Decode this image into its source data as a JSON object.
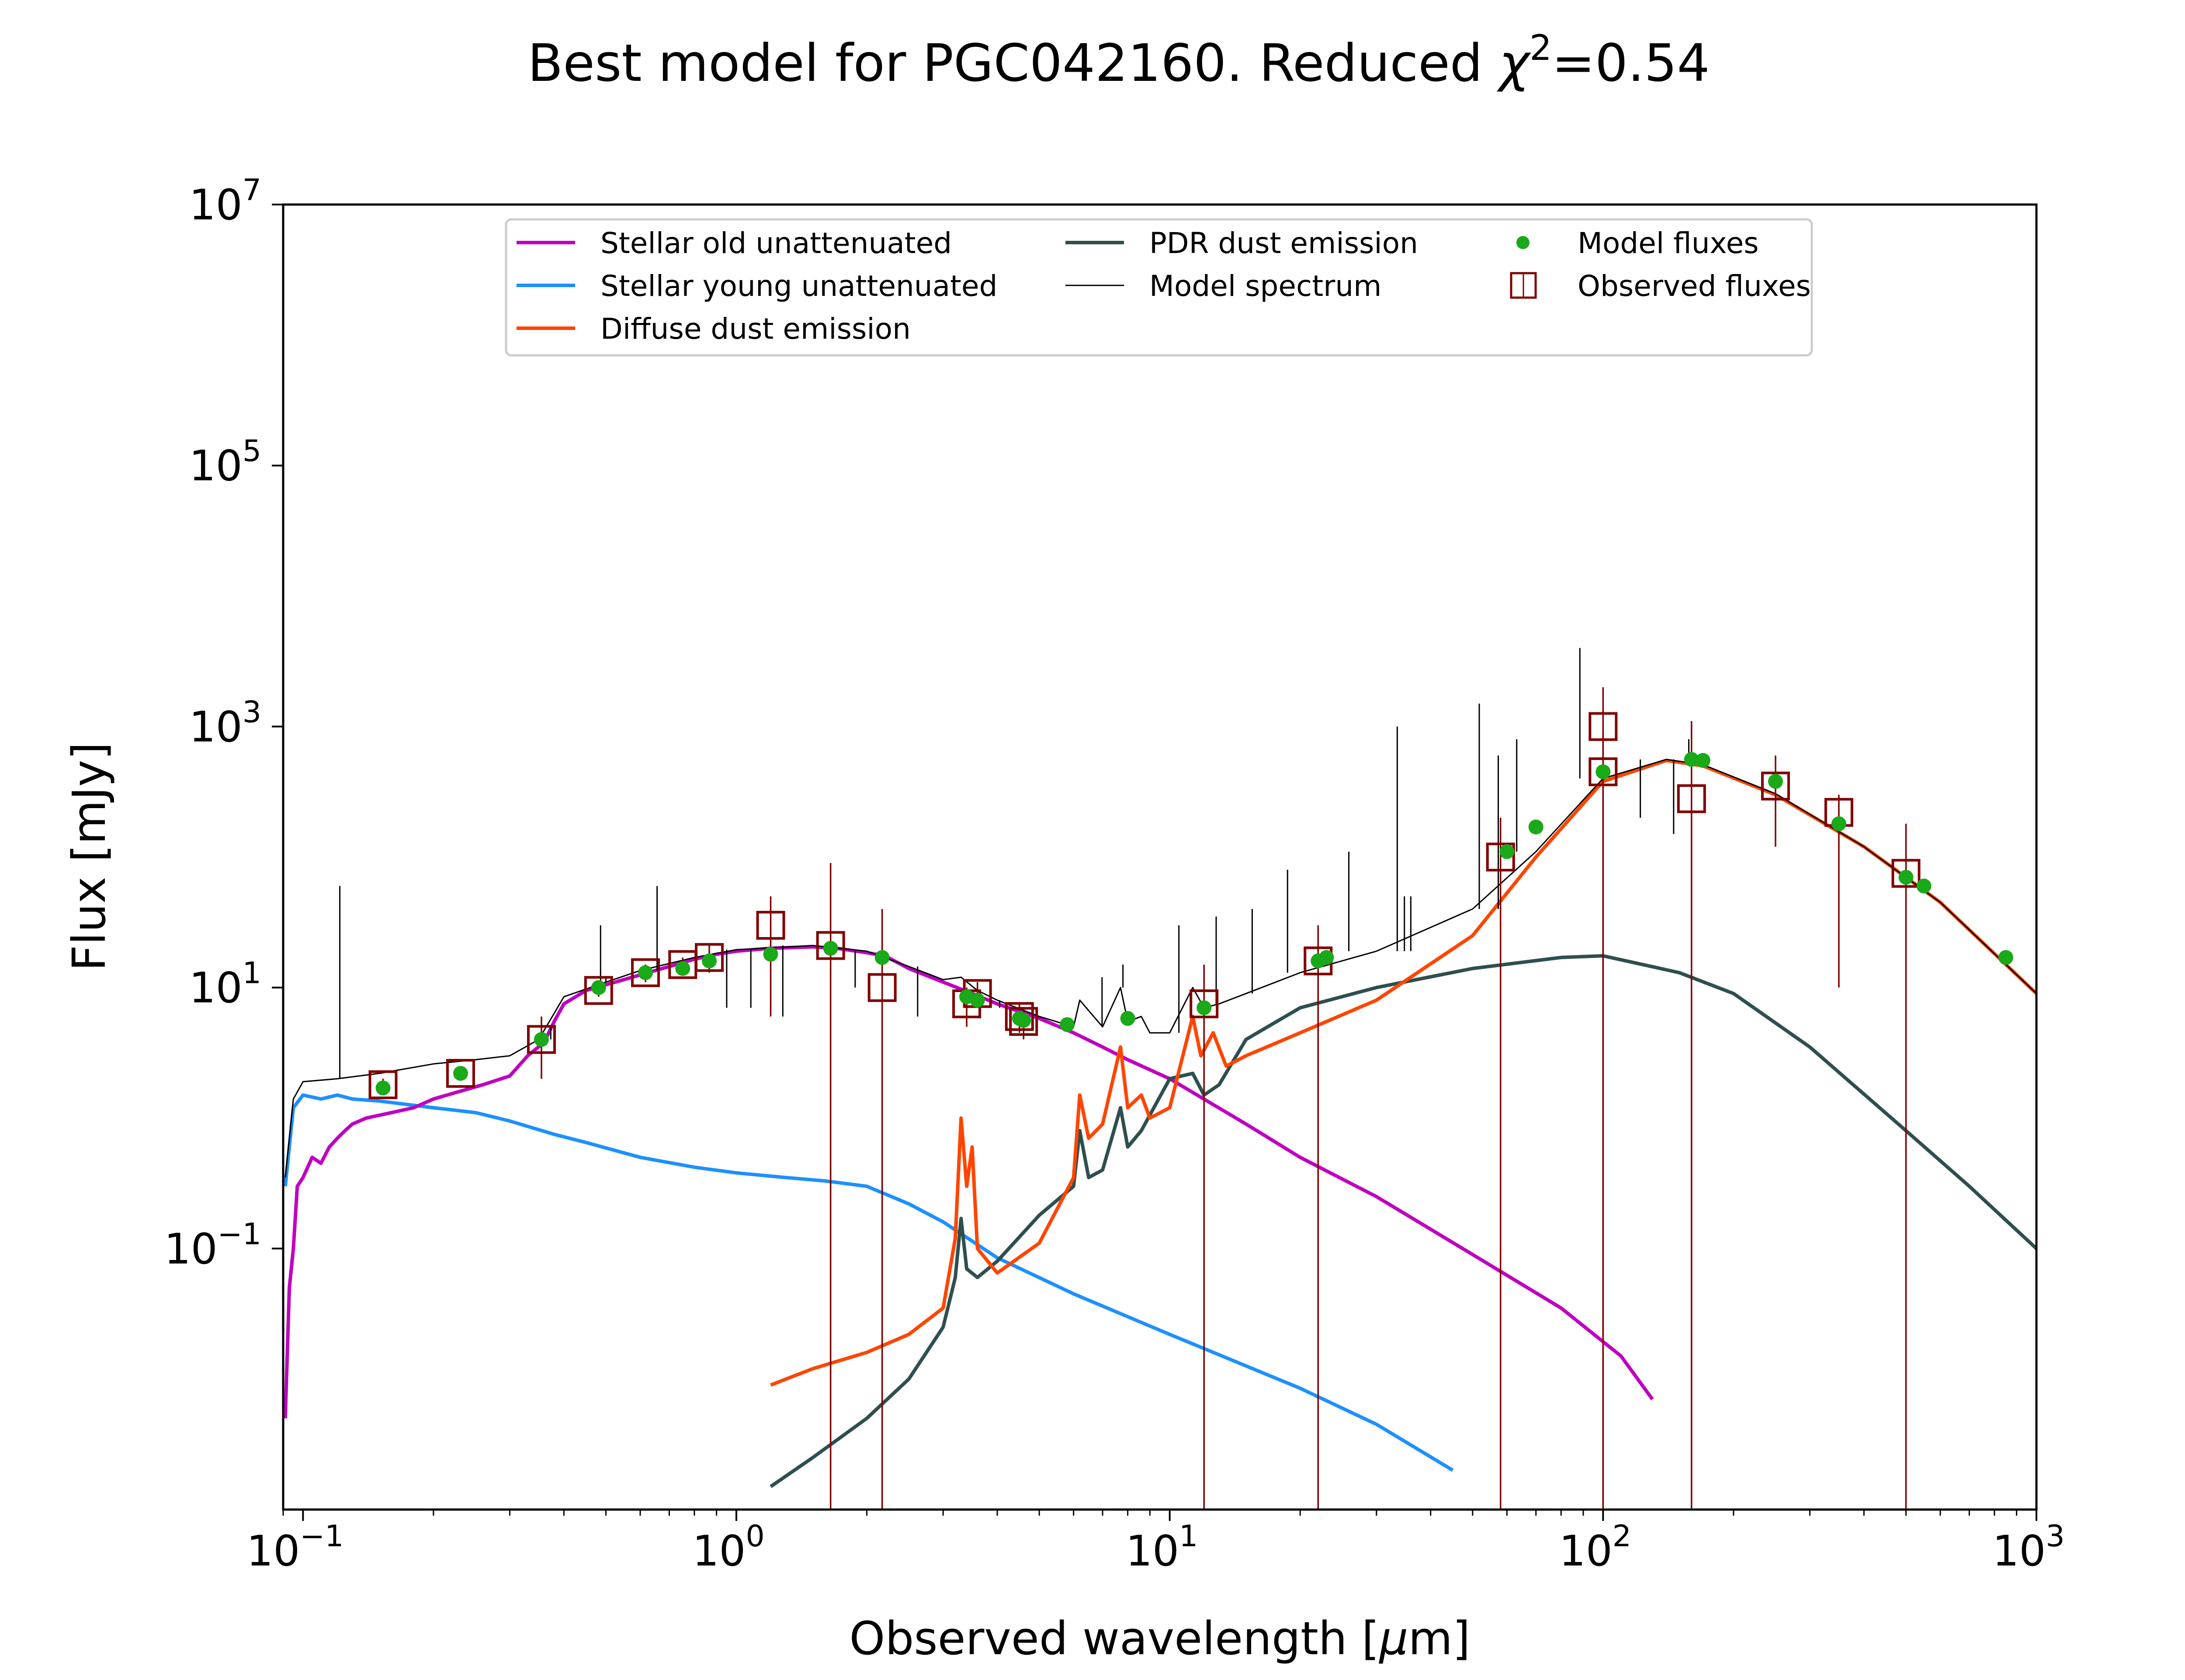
{
  "chart_data": {
    "type": "line",
    "title": "Best model for PGC042160. Reduced χ²=0.54",
    "title_parts": {
      "main": "Best model for PGC042160. Reduced ",
      "chi": "χ",
      "sup": "2",
      "tail": "=0.54"
    },
    "xlabel": "Observed wavelength [μm]",
    "xlabel_parts": {
      "main": "Observed wavelength [",
      "mu": "μ",
      "tail": "m]"
    },
    "ylabel": "Flux [mJy]",
    "xscale": "log",
    "yscale": "log",
    "xlim": [
      0.09,
      1000
    ],
    "ylim": [
      0.001,
      10000000
    ],
    "xticks": [
      {
        "value": 0.1,
        "base": "10",
        "exp": "−1"
      },
      {
        "value": 1,
        "base": "10",
        "exp": "0"
      },
      {
        "value": 10,
        "base": "10",
        "exp": "1"
      },
      {
        "value": 100,
        "base": "10",
        "exp": "2"
      },
      {
        "value": 1000,
        "base": "10",
        "exp": "3"
      }
    ],
    "yticks": [
      {
        "value": 0.1,
        "base": "10",
        "exp": "−1"
      },
      {
        "value": 10,
        "base": "10",
        "exp": "1"
      },
      {
        "value": 1000,
        "base": "10",
        "exp": "3"
      },
      {
        "value": 100000,
        "base": "10",
        "exp": "5"
      },
      {
        "value": 10000000,
        "base": "10",
        "exp": "7"
      }
    ],
    "grid": false,
    "legend_position": "top-center",
    "legend_entries": [
      {
        "label": "Stellar old unattenuated",
        "color": "#bf00bf",
        "kind": "line"
      },
      {
        "label": "Stellar young unattenuated",
        "color": "#1e90ff",
        "kind": "line"
      },
      {
        "label": "Diffuse dust emission",
        "color": "#ff4500",
        "kind": "line"
      },
      {
        "label": "PDR dust emission",
        "color": "#2f4f4f",
        "kind": "line"
      },
      {
        "label": "Model spectrum",
        "color": "#000000",
        "kind": "thin-line"
      },
      {
        "label": "Model fluxes",
        "color": "#19a919",
        "kind": "dot"
      },
      {
        "label": "Observed fluxes",
        "color": "#800000",
        "kind": "square"
      }
    ],
    "series": [
      {
        "name": "Stellar old unattenuated",
        "color": "#bf00bf",
        "points": [
          [
            0.091,
            0.005
          ],
          [
            0.093,
            0.05
          ],
          [
            0.095,
            0.1
          ],
          [
            0.097,
            0.3
          ],
          [
            0.1,
            0.35
          ],
          [
            0.105,
            0.5
          ],
          [
            0.11,
            0.45
          ],
          [
            0.115,
            0.6
          ],
          [
            0.12,
            0.7
          ],
          [
            0.125,
            0.8
          ],
          [
            0.13,
            0.9
          ],
          [
            0.14,
            1.0
          ],
          [
            0.16,
            1.1
          ],
          [
            0.18,
            1.2
          ],
          [
            0.2,
            1.4
          ],
          [
            0.23,
            1.6
          ],
          [
            0.26,
            1.8
          ],
          [
            0.3,
            2.1
          ],
          [
            0.33,
            3.0
          ],
          [
            0.36,
            3.8
          ],
          [
            0.38,
            5.5
          ],
          [
            0.4,
            7.5
          ],
          [
            0.45,
            9.5
          ],
          [
            0.5,
            10.5
          ],
          [
            0.6,
            12.5
          ],
          [
            0.7,
            14.5
          ],
          [
            0.8,
            16.5
          ],
          [
            0.9,
            18.0
          ],
          [
            1.0,
            19.0
          ],
          [
            1.2,
            20.0
          ],
          [
            1.5,
            20.5
          ],
          [
            1.7,
            20.0
          ],
          [
            2.0,
            18.5
          ],
          [
            2.2,
            17.5
          ],
          [
            2.5,
            14.0
          ],
          [
            3.0,
            11.0
          ],
          [
            3.5,
            9.0
          ],
          [
            4.0,
            7.5
          ],
          [
            5.0,
            5.8
          ],
          [
            6.0,
            4.5
          ],
          [
            7.0,
            3.5
          ],
          [
            8.0,
            2.8
          ],
          [
            10.0,
            2.0
          ],
          [
            15.0,
            0.9
          ],
          [
            20.0,
            0.5
          ],
          [
            30.0,
            0.25
          ],
          [
            50.0,
            0.09
          ],
          [
            80.0,
            0.035
          ],
          [
            110.0,
            0.015
          ],
          [
            130.0,
            0.007
          ]
        ]
      },
      {
        "name": "Stellar young unattenuated",
        "color": "#1e90ff",
        "points": [
          [
            0.091,
            0.3
          ],
          [
            0.095,
            1.2
          ],
          [
            0.1,
            1.5
          ],
          [
            0.11,
            1.4
          ],
          [
            0.12,
            1.5
          ],
          [
            0.13,
            1.4
          ],
          [
            0.15,
            1.35
          ],
          [
            0.2,
            1.2
          ],
          [
            0.25,
            1.1
          ],
          [
            0.3,
            0.95
          ],
          [
            0.38,
            0.75
          ],
          [
            0.45,
            0.65
          ],
          [
            0.6,
            0.5
          ],
          [
            0.8,
            0.42
          ],
          [
            1.0,
            0.38
          ],
          [
            1.3,
            0.35
          ],
          [
            1.6,
            0.33
          ],
          [
            2.0,
            0.3
          ],
          [
            2.5,
            0.22
          ],
          [
            3.0,
            0.16
          ],
          [
            4.0,
            0.085
          ],
          [
            6.0,
            0.045
          ],
          [
            10.0,
            0.022
          ],
          [
            20.0,
            0.0085
          ],
          [
            30.0,
            0.0045
          ],
          [
            45.0,
            0.002
          ]
        ]
      },
      {
        "name": "Diffuse dust emission",
        "color": "#ff4500",
        "points": [
          [
            1.2,
            0.009
          ],
          [
            1.5,
            0.012
          ],
          [
            2.0,
            0.016
          ],
          [
            2.5,
            0.022
          ],
          [
            3.0,
            0.035
          ],
          [
            3.2,
            0.12
          ],
          [
            3.3,
            1.0
          ],
          [
            3.4,
            0.3
          ],
          [
            3.5,
            0.6
          ],
          [
            3.6,
            0.1
          ],
          [
            4.0,
            0.065
          ],
          [
            5.0,
            0.11
          ],
          [
            6.0,
            0.35
          ],
          [
            6.2,
            1.5
          ],
          [
            6.5,
            0.7
          ],
          [
            7.0,
            0.9
          ],
          [
            7.7,
            3.5
          ],
          [
            8.0,
            1.2
          ],
          [
            8.6,
            1.5
          ],
          [
            9.0,
            1.0
          ],
          [
            10.0,
            1.2
          ],
          [
            11.3,
            6.0
          ],
          [
            11.8,
            3.0
          ],
          [
            12.6,
            4.5
          ],
          [
            13.5,
            2.5
          ],
          [
            15.0,
            3.0
          ],
          [
            20.0,
            4.5
          ],
          [
            30.0,
            8.0
          ],
          [
            50.0,
            25.0
          ],
          [
            70.0,
            100.0
          ],
          [
            100.0,
            380.0
          ],
          [
            140.0,
            550.0
          ],
          [
            170.0,
            500.0
          ],
          [
            250.0,
            300.0
          ],
          [
            400.0,
            120.0
          ],
          [
            600.0,
            45.0
          ],
          [
            1000.0,
            9.0
          ]
        ]
      },
      {
        "name": "PDR dust emission",
        "color": "#2f4f4f",
        "points": [
          [
            1.2,
            0.0015
          ],
          [
            1.5,
            0.0025
          ],
          [
            2.0,
            0.005
          ],
          [
            2.5,
            0.01
          ],
          [
            3.0,
            0.025
          ],
          [
            3.2,
            0.06
          ],
          [
            3.3,
            0.17
          ],
          [
            3.4,
            0.07
          ],
          [
            3.6,
            0.06
          ],
          [
            4.0,
            0.08
          ],
          [
            5.0,
            0.18
          ],
          [
            6.0,
            0.3
          ],
          [
            6.2,
            0.8
          ],
          [
            6.5,
            0.35
          ],
          [
            7.0,
            0.4
          ],
          [
            7.7,
            1.2
          ],
          [
            8.0,
            0.6
          ],
          [
            8.6,
            0.8
          ],
          [
            10.0,
            2.0
          ],
          [
            11.3,
            2.2
          ],
          [
            12.0,
            1.5
          ],
          [
            13.0,
            1.8
          ],
          [
            15.0,
            4.0
          ],
          [
            20.0,
            7.0
          ],
          [
            30.0,
            10.0
          ],
          [
            50.0,
            14.0
          ],
          [
            80.0,
            17.0
          ],
          [
            100.0,
            17.5
          ],
          [
            150.0,
            13.0
          ],
          [
            200.0,
            9.0
          ],
          [
            300.0,
            3.5
          ],
          [
            500.0,
            0.8
          ],
          [
            700.0,
            0.3
          ],
          [
            1000.0,
            0.1
          ]
        ]
      },
      {
        "name": "Model spectrum",
        "color": "#000000",
        "thin": true,
        "points": [
          [
            0.091,
            0.35
          ],
          [
            0.095,
            1.4
          ],
          [
            0.1,
            1.9
          ],
          [
            0.12,
            2.0
          ],
          [
            0.15,
            2.2
          ],
          [
            0.2,
            2.6
          ],
          [
            0.25,
            2.8
          ],
          [
            0.3,
            3.0
          ],
          [
            0.35,
            4.0
          ],
          [
            0.4,
            8.5
          ],
          [
            0.5,
            11.0
          ],
          [
            0.6,
            13.5
          ],
          [
            0.8,
            17.0
          ],
          [
            1.0,
            19.5
          ],
          [
            1.5,
            21.0
          ],
          [
            2.0,
            19.0
          ],
          [
            2.5,
            14.5
          ],
          [
            3.0,
            11.5
          ],
          [
            3.3,
            12.0
          ],
          [
            3.6,
            9.5
          ],
          [
            4.0,
            8.0
          ],
          [
            5.0,
            6.0
          ],
          [
            6.0,
            5.0
          ],
          [
            6.2,
            8.0
          ],
          [
            7.0,
            5.0
          ],
          [
            7.7,
            10.0
          ],
          [
            8.0,
            5.5
          ],
          [
            8.6,
            6.0
          ],
          [
            9.0,
            4.5
          ],
          [
            10.0,
            4.5
          ],
          [
            11.3,
            10.0
          ],
          [
            12.0,
            7.0
          ],
          [
            13.0,
            7.5
          ],
          [
            15.0,
            9.0
          ],
          [
            20.0,
            13.0
          ],
          [
            30.0,
            19.0
          ],
          [
            50.0,
            40.0
          ],
          [
            70.0,
            110.0
          ],
          [
            100.0,
            400.0
          ],
          [
            140.0,
            560.0
          ],
          [
            170.0,
            510.0
          ],
          [
            250.0,
            305.0
          ],
          [
            400.0,
            120.0
          ],
          [
            600.0,
            45.0
          ],
          [
            1000.0,
            9.0
          ]
        ],
        "emission_lines": [
          [
            0.1216,
            60
          ],
          [
            0.373,
            5
          ],
          [
            0.486,
            30
          ],
          [
            0.5,
            12
          ],
          [
            0.6563,
            60
          ],
          [
            0.95,
            7
          ],
          [
            1.08,
            7
          ],
          [
            1.28,
            6
          ],
          [
            1.88,
            10
          ],
          [
            2.62,
            6
          ],
          [
            4.05,
            7
          ],
          [
            6.98,
            12
          ],
          [
            7.8,
            15
          ],
          [
            10.5,
            30
          ],
          [
            12.8,
            35
          ],
          [
            15.5,
            40
          ],
          [
            18.7,
            80
          ],
          [
            25.9,
            110
          ],
          [
            33.5,
            1000
          ],
          [
            34.8,
            50
          ],
          [
            36.0,
            50
          ],
          [
            51.8,
            1500
          ],
          [
            57.3,
            600
          ],
          [
            63.2,
            800
          ],
          [
            88.4,
            4000
          ],
          [
            121.9,
            200
          ],
          [
            145.5,
            150
          ],
          [
            157.7,
            800
          ]
        ]
      }
    ],
    "model_fluxes": [
      [
        0.153,
        1.7
      ],
      [
        0.231,
        2.2
      ],
      [
        0.355,
        4.0
      ],
      [
        0.481,
        10.0
      ],
      [
        0.617,
        13.0
      ],
      [
        0.752,
        14.0
      ],
      [
        0.866,
        16.0
      ],
      [
        1.2,
        18.0
      ],
      [
        1.65,
        20.0
      ],
      [
        2.17,
        17.0
      ],
      [
        3.4,
        8.5
      ],
      [
        3.6,
        8.0
      ],
      [
        4.5,
        5.8
      ],
      [
        4.6,
        5.6
      ],
      [
        5.8,
        5.2
      ],
      [
        8.0,
        5.8
      ],
      [
        12.0,
        7.0
      ],
      [
        22.0,
        16.0
      ],
      [
        23.0,
        17.0
      ],
      [
        60.0,
        110.0
      ],
      [
        70.0,
        170.0
      ],
      [
        100.0,
        450.0
      ],
      [
        160.0,
        560.0
      ],
      [
        170.0,
        550.0
      ],
      [
        250.0,
        380.0
      ],
      [
        350.0,
        180.0
      ],
      [
        500.0,
        70.0
      ],
      [
        550.0,
        60.0
      ],
      [
        850.0,
        17.0
      ]
    ],
    "observed_fluxes": [
      {
        "x": 0.153,
        "y": 1.8,
        "err_low": 1.6,
        "err_high": 2.0
      },
      {
        "x": 0.231,
        "y": 2.2,
        "err_low": 2.0,
        "err_high": 2.4
      },
      {
        "x": 0.355,
        "y": 4.0,
        "err_low": 2.0,
        "err_high": 6.0
      },
      {
        "x": 0.481,
        "y": 9.5,
        "err_low": 8.5,
        "err_high": 10.5
      },
      {
        "x": 0.617,
        "y": 13.0,
        "err_low": 11.0,
        "err_high": 15.0
      },
      {
        "x": 0.752,
        "y": 15.0,
        "err_low": 13.0,
        "err_high": 17.0
      },
      {
        "x": 0.866,
        "y": 17.0,
        "err_low": 13.0,
        "err_high": 21.0
      },
      {
        "x": 1.2,
        "y": 30.0,
        "err_low": 6.0,
        "err_high": 50.0
      },
      {
        "x": 1.65,
        "y": 21.0,
        "err_low": 0.001,
        "err_high": 90.0
      },
      {
        "x": 2.17,
        "y": 10.0,
        "err_low": 0.001,
        "err_high": 40.0
      },
      {
        "x": 3.4,
        "y": 7.5,
        "err_low": 5.0,
        "err_high": 10.0
      },
      {
        "x": 3.6,
        "y": 9.0,
        "err_low": 7.0,
        "err_high": 11.0
      },
      {
        "x": 4.5,
        "y": 6.0,
        "err_low": 4.5,
        "err_high": 7.5
      },
      {
        "x": 4.6,
        "y": 5.5,
        "err_low": 4.0,
        "err_high": 7.0
      },
      {
        "x": 12.0,
        "y": 7.5,
        "err_low": 0.001,
        "err_high": 15.0
      },
      {
        "x": 22.0,
        "y": 16.0,
        "err_low": 0.001,
        "err_high": 30.0
      },
      {
        "x": 58.0,
        "y": 100.0,
        "err_low": 0.001,
        "err_high": 200.0
      },
      {
        "x": 100.0,
        "y": 1000.0,
        "err_low": 0.001,
        "err_high": 2000.0
      },
      {
        "x": 100.0,
        "y": 450.0,
        "err_low": 0.001,
        "err_high": 900.0
      },
      {
        "x": 160.0,
        "y": 280.0,
        "err_low": 0.001,
        "err_high": 1100.0
      },
      {
        "x": 250.0,
        "y": 350.0,
        "err_low": 120.0,
        "err_high": 600.0
      },
      {
        "x": 350.0,
        "y": 220.0,
        "err_low": 10.0,
        "err_high": 300.0
      },
      {
        "x": 500.0,
        "y": 75.0,
        "err_low": 0.001,
        "err_high": 180.0
      }
    ]
  }
}
